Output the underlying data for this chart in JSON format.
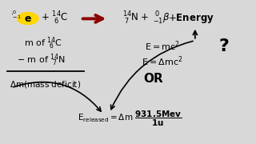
{
  "bg_color": "#d8d8d8",
  "text_color": "#000000",
  "arrow_color": "#8B0000",
  "highlight_color": "#FFD700",
  "figsize": [
    3.2,
    1.8
  ],
  "dpi": 100
}
